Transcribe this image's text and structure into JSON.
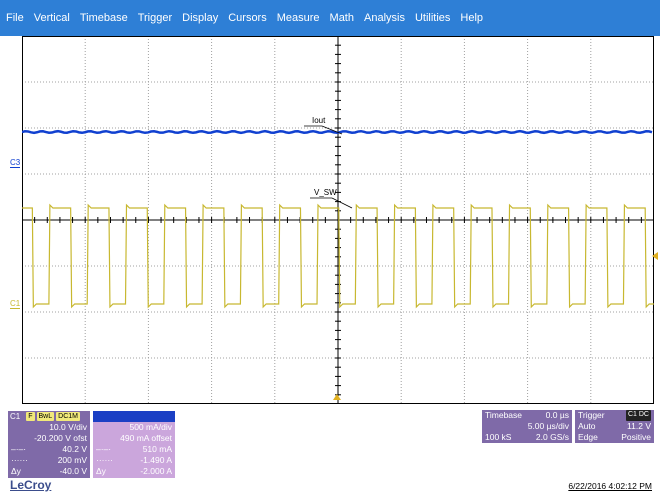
{
  "menu": [
    "File",
    "Vertical",
    "Timebase",
    "Trigger",
    "Display",
    "Cursors",
    "Measure",
    "Math",
    "Analysis",
    "Utilities",
    "Help"
  ],
  "waveforms": {
    "iout_label": "Iout",
    "vsw_label": "V_SW",
    "c3_marker": "C3",
    "c1_marker": "C1"
  },
  "colors": {
    "menubar": "#2e7fd6",
    "c1": "#c8b830",
    "c3": "#1040d0",
    "panel": "#7f6aa8"
  },
  "channel1": {
    "name": "C1",
    "badges": [
      "F",
      "BwL",
      "DC1M"
    ],
    "scale": "10.0 V/div",
    "offset": "-20.200 V ofst",
    "cursor1": "40.2 V",
    "cursor2": "200 mV",
    "delta": "-40.0 V",
    "delta_label": "Δy"
  },
  "channel3": {
    "scale": "500 mA/div",
    "offset": "490 mA offset",
    "cursor1": "510 mA",
    "cursor2": "-1.490 A",
    "delta": "-2.000 A",
    "delta_label": "Δy"
  },
  "timebase": {
    "label": "Timebase",
    "delay": "0.0 µs",
    "per_div": "5.00 µs/div",
    "samples": "100 kS",
    "rate": "2.0 GS/s"
  },
  "trigger": {
    "label": "Trigger",
    "badge": "C1 DC",
    "mode": "Auto",
    "level": "11.2 V",
    "type": "Edge",
    "slope": "Positive"
  },
  "brand": "LeCroy",
  "timestamp": "6/22/2016 4:02:12 PM"
}
